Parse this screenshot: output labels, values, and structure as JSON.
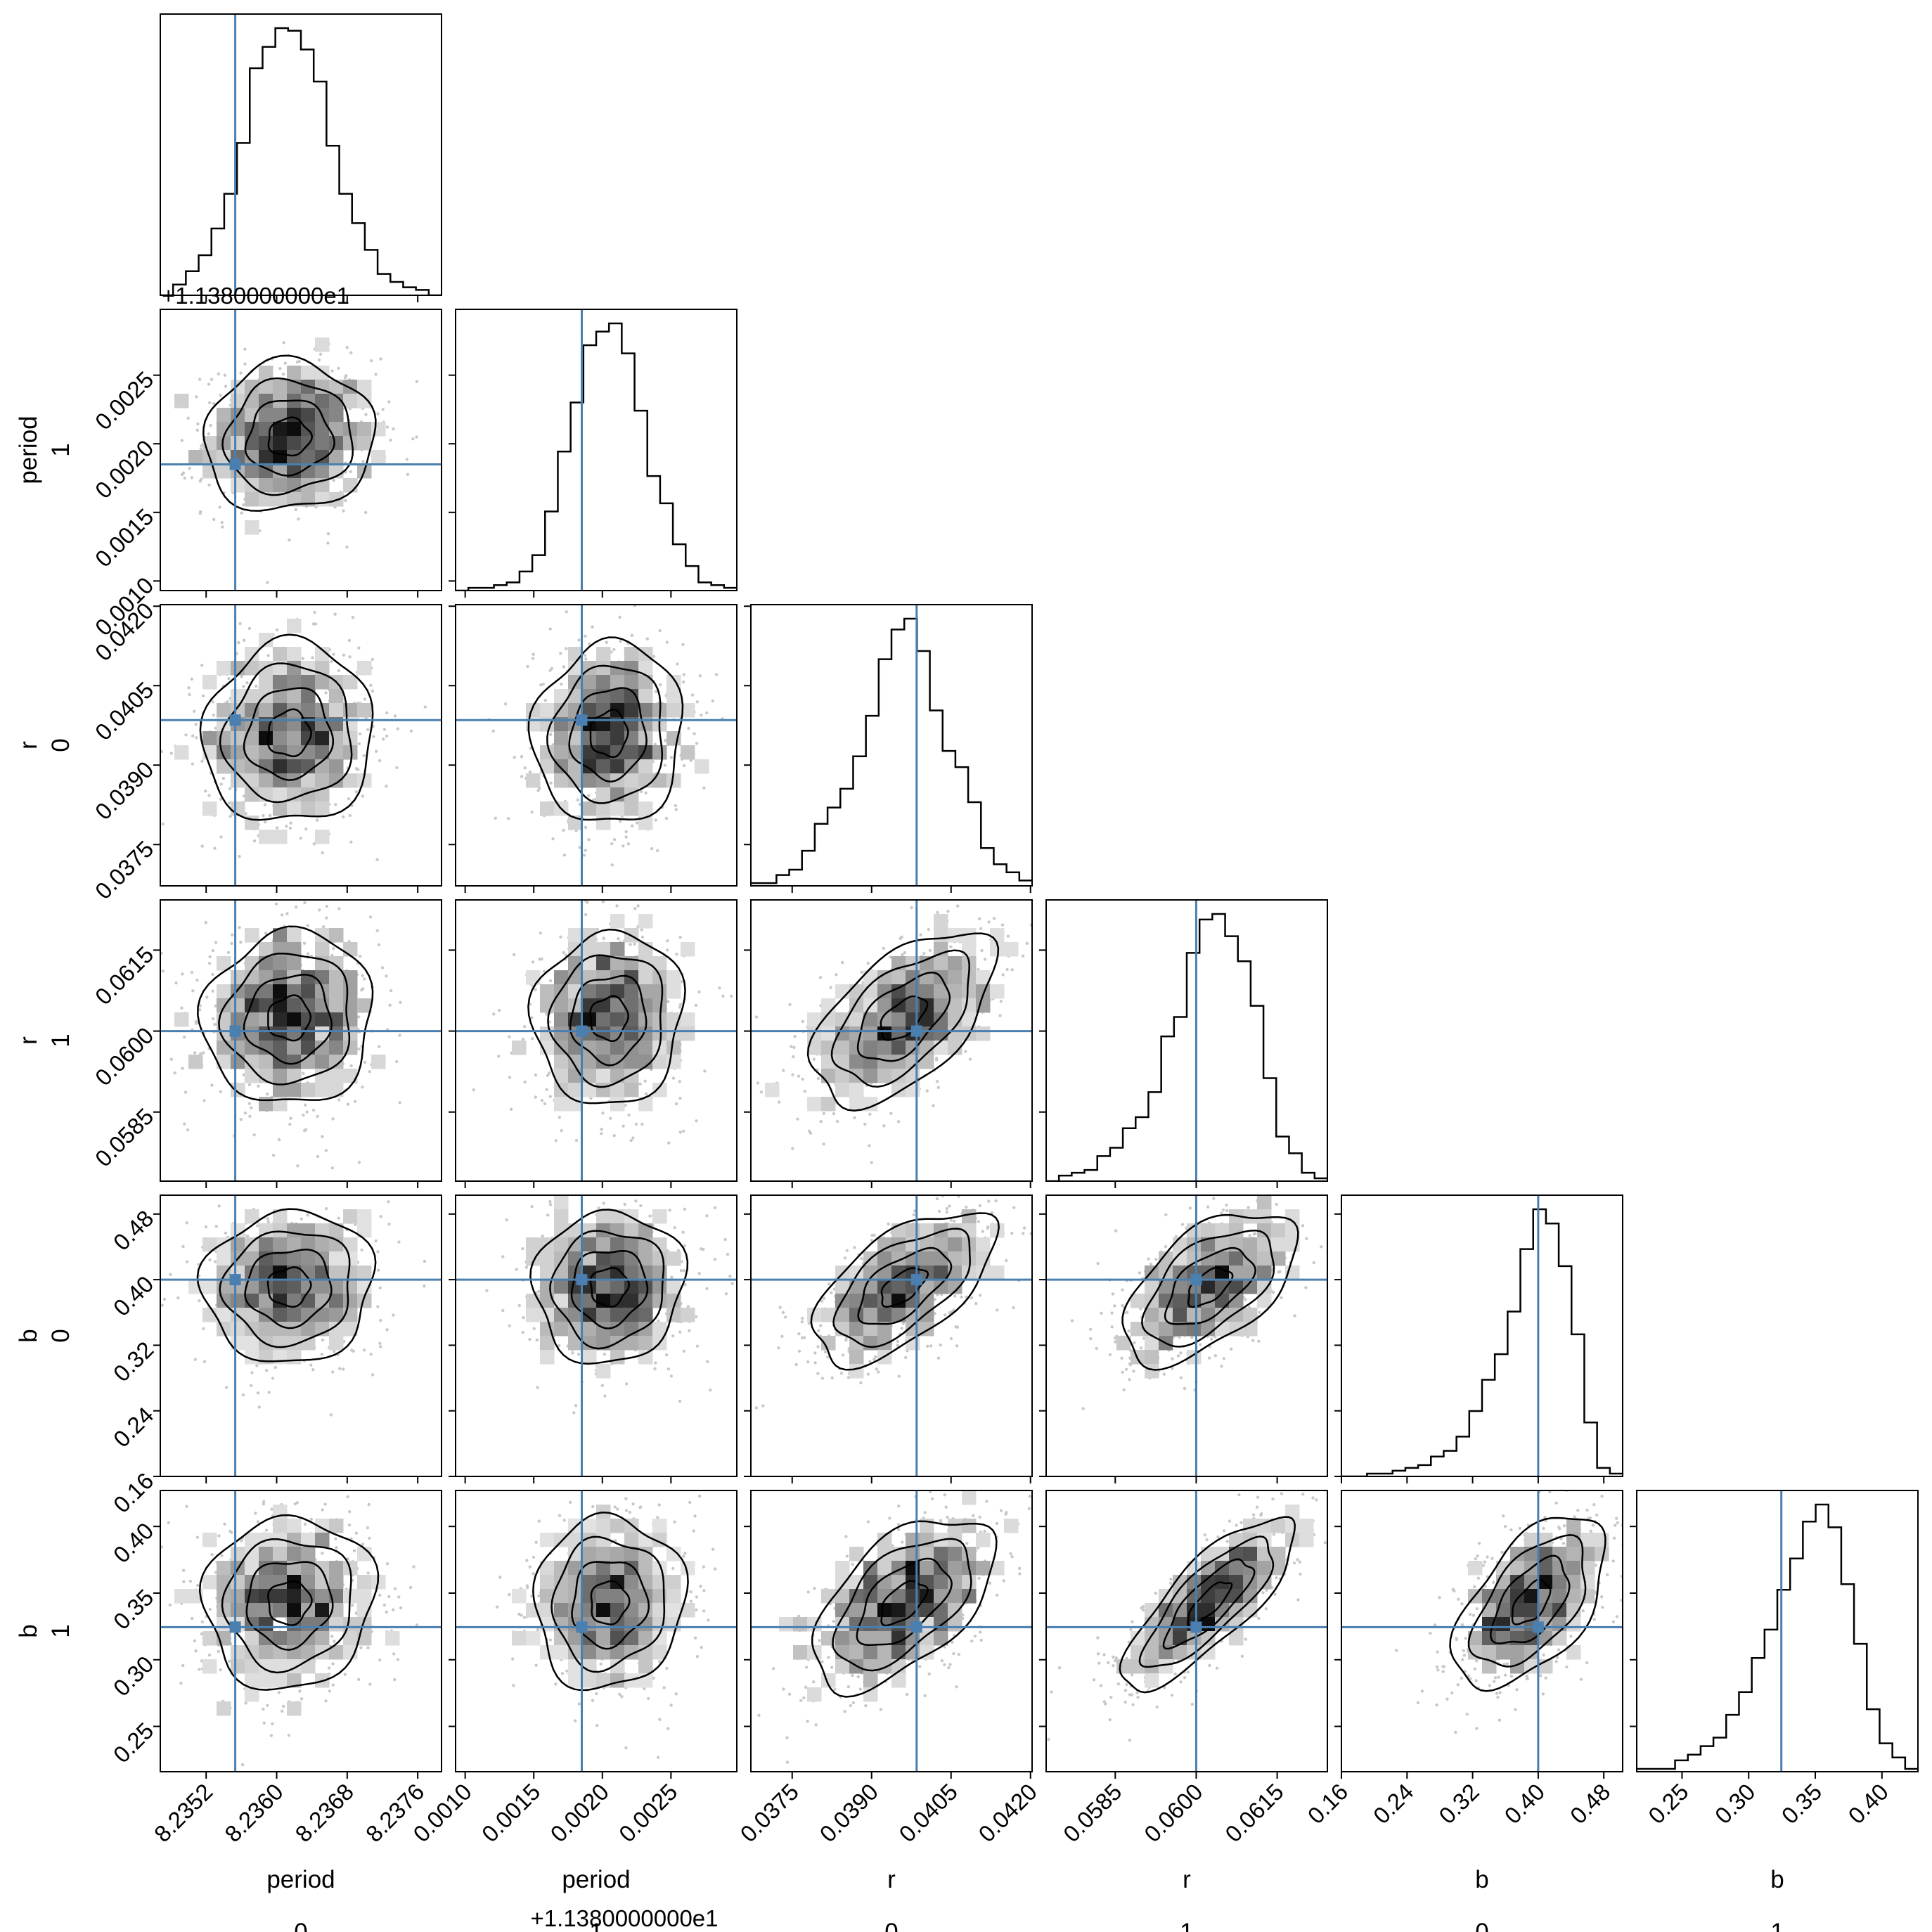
{
  "chart_data": {
    "type": "corner",
    "title": "",
    "variables": [
      {
        "id": "p0",
        "label": "period",
        "index_label": "0",
        "range": [
          8.23468,
          8.23787
        ],
        "ticks": [
          "8.2352",
          "8.2360",
          "8.2368",
          "8.2376"
        ],
        "tick_values": [
          8.2352,
          8.236,
          8.2368,
          8.2376
        ],
        "offset_text": "+1.1380000000e1",
        "truth": 8.23553
      },
      {
        "id": "p1",
        "label": "period",
        "index_label": "1",
        "range": [
          0.00093,
          0.00298
        ],
        "ticks": [
          "0.0010",
          "0.0015",
          "0.0020",
          "0.0025"
        ],
        "tick_values": [
          0.001,
          0.0015,
          0.002,
          0.0025
        ],
        "offset_text": "+1.1380000000e1",
        "truth": 0.00185
      },
      {
        "id": "r0",
        "label": "r",
        "index_label": "0",
        "range": [
          0.03672,
          0.04203
        ],
        "ticks": [
          "0.0375",
          "0.0390",
          "0.0405",
          "0.0420"
        ],
        "tick_values": [
          0.0375,
          0.039,
          0.0405,
          0.042
        ],
        "offset_text": "",
        "truth": 0.03985
      },
      {
        "id": "r1",
        "label": "r",
        "index_label": "1",
        "range": [
          0.05722,
          0.06243
        ],
        "ticks": [
          "0.0585",
          "0.0600",
          "0.0615"
        ],
        "tick_values": [
          0.0585,
          0.06,
          0.0615
        ],
        "offset_text": "",
        "truth": 0.06
      },
      {
        "id": "b0",
        "label": "b",
        "index_label": "0",
        "range": [
          0.16,
          0.503
        ],
        "ticks": [
          "0.16",
          "0.24",
          "0.32",
          "0.40",
          "0.48"
        ],
        "tick_values": [
          0.16,
          0.24,
          0.32,
          0.4,
          0.48
        ],
        "offset_text": "",
        "truth": 0.4
      },
      {
        "id": "b1",
        "label": "b",
        "index_label": "1",
        "range": [
          0.216,
          0.427
        ],
        "ticks": [
          "0.25",
          "0.30",
          "0.35",
          "0.40"
        ],
        "tick_values": [
          0.25,
          0.3,
          0.35,
          0.4
        ],
        "offset_text": "",
        "truth": 0.3245
      }
    ],
    "truth_color": "#4a7fb0",
    "sample_color": "#c8c8c8",
    "contour_color": "#000000",
    "histograms": {
      "p0": [
        0,
        4,
        9,
        15,
        25,
        38,
        57,
        85,
        93,
        100,
        99,
        92,
        80,
        56,
        38,
        27,
        17,
        8,
        5,
        3,
        2,
        0
      ],
      "p1": [
        0,
        1,
        1,
        2,
        3,
        7,
        13,
        29,
        51,
        69,
        90,
        95,
        98,
        87,
        66,
        42,
        32,
        17,
        9,
        3,
        2,
        1
      ],
      "r0": [
        1,
        1,
        4,
        6,
        13,
        23,
        29,
        36,
        48,
        63,
        84,
        95,
        99,
        87,
        65,
        50,
        44,
        31,
        14,
        8,
        5,
        2
      ],
      "r1": [
        0,
        2,
        3,
        4,
        9,
        12,
        19,
        23,
        32,
        52,
        59,
        82,
        94,
        96,
        88,
        79,
        63,
        37,
        16,
        10,
        3,
        1
      ],
      "b0": [
        0,
        0,
        1,
        1,
        2,
        3,
        4,
        7,
        9,
        14,
        23,
        34,
        43,
        58,
        80,
        94,
        89,
        74,
        50,
        19,
        3,
        1
      ],
      "b1": [
        1,
        1,
        1,
        4,
        6,
        9,
        12,
        20,
        28,
        40,
        50,
        64,
        75,
        88,
        94,
        86,
        66,
        45,
        22,
        10,
        5,
        1
      ]
    },
    "correlations": {
      "r0_r1": 0.55,
      "r0_b0": 0.6,
      "r1_b0": 0.55,
      "r0_b1": 0.55,
      "r1_b1": 0.8,
      "b0_b1": 0.55
    }
  }
}
